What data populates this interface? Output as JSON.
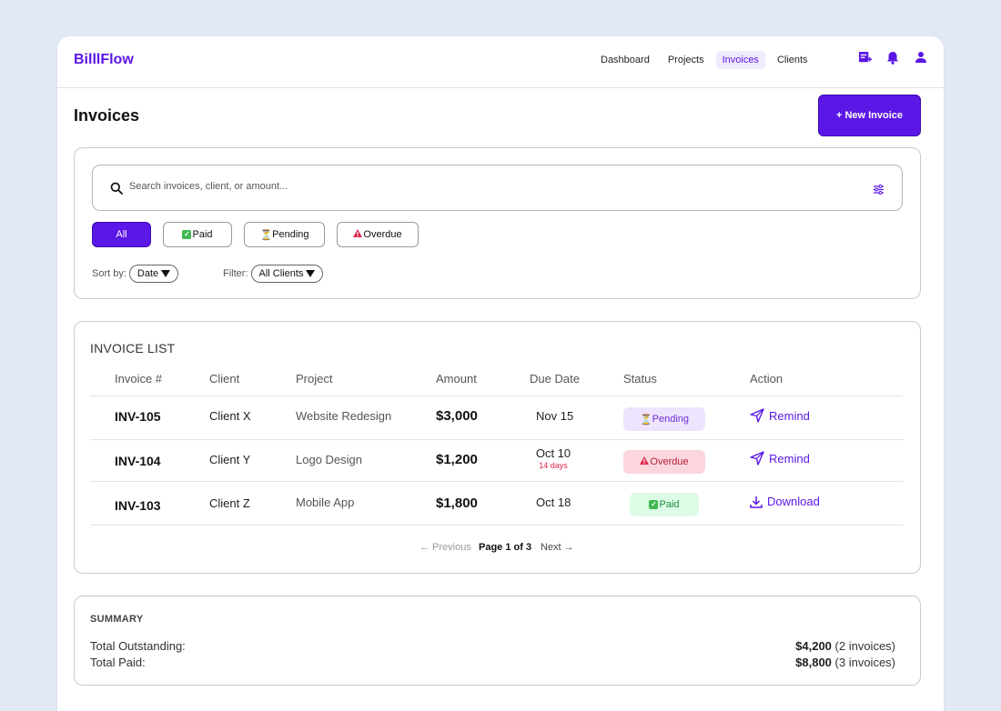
{
  "app": {
    "name": "BilllFlow"
  },
  "nav": {
    "items": [
      {
        "label": "Dashboard"
      },
      {
        "label": "Projects"
      },
      {
        "label": "Invoices",
        "active": true
      },
      {
        "label": "Clients"
      }
    ],
    "icons": [
      "add-note-icon",
      "bell-icon",
      "user-icon"
    ]
  },
  "page": {
    "title": "Invoices",
    "new_button": "+ New Invoice"
  },
  "search": {
    "placeholder": "Search invoices, client, or amount...",
    "value": ""
  },
  "chips": {
    "all": "All",
    "paid": "Paid",
    "pending": "Pending",
    "overdue": "Overdue",
    "active": "All"
  },
  "sort": {
    "label": "Sort by:",
    "value": "Date"
  },
  "filter": {
    "label": "Filter:",
    "value": "All Clients"
  },
  "list": {
    "title": "INVOICE LIST",
    "headers": {
      "invoice": "Invoice #",
      "client": "Client",
      "project": "Project",
      "amount": "Amount",
      "due": "Due Date",
      "status": "Status",
      "action": "Action"
    },
    "rows": [
      {
        "id": "INV-105",
        "client": "Client X",
        "project": "Website Redesign",
        "amount": "$3,000",
        "due": "Nov 15",
        "due_note": "",
        "status": "Pending",
        "action": "Remind"
      },
      {
        "id": "INV-104",
        "client": "Client Y",
        "project": "Logo Design",
        "amount": "$1,200",
        "due": "Oct 10",
        "due_note": "14 days",
        "status": "Overdue",
        "action": "Remind"
      },
      {
        "id": "INV-103",
        "client": "Client Z",
        "project": "Mobile App",
        "amount": "$1,800",
        "due": "Oct 18",
        "due_note": "",
        "status": "Paid",
        "action": "Download"
      }
    ],
    "pager": {
      "prev": "← Previous",
      "info": "Page 1 of 3",
      "next": "Next →"
    }
  },
  "summary": {
    "title": "SUMMARY",
    "outstanding_label": "Total Outstanding:",
    "outstanding_amount": "$4,200",
    "outstanding_count": "(2 invoices)",
    "paid_label": "Total Paid:",
    "paid_amount": "$8,800",
    "paid_count": "(3 invoices)"
  },
  "colors": {
    "accent": "#5b17e6",
    "pending_bg": "#efe4fd",
    "overdue_bg": "#fbd6dc",
    "paid_bg": "#dcfce6",
    "overdue_text": "#e0284b"
  }
}
